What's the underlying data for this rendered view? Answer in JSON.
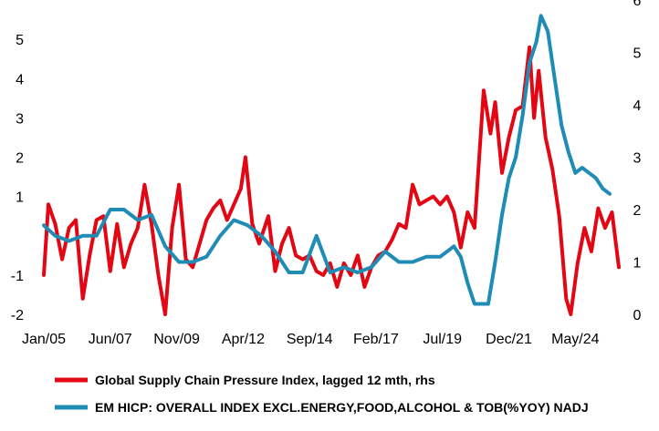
{
  "chart_data": {
    "type": "line",
    "title": "",
    "xlabel": "",
    "ylabel": "",
    "x_range": [
      "2005-01",
      "2025-12"
    ],
    "x_ticks": [
      "Jan/05",
      "Jun/07",
      "Nov/09",
      "Apr/12",
      "Sep/14",
      "Feb/17",
      "Jul/19",
      "Dec/21",
      "May/24"
    ],
    "y_left": {
      "min": -2,
      "max": 6,
      "ticks": [
        "-2",
        "-1",
        "1",
        "2",
        "3",
        "4",
        "5"
      ]
    },
    "y_right": {
      "min": 0,
      "max": 6,
      "ticks": [
        "0",
        "1",
        "2",
        "3",
        "4",
        "5",
        "6"
      ]
    },
    "grid": false,
    "legend_position": "bottom",
    "series": [
      {
        "name": "Global Supply Chain Pressure Index, lagged 12 mth, rhs",
        "color": "#e30613",
        "axis": "left",
        "points": [
          [
            "2005-01",
            -1.0
          ],
          [
            "2005-03",
            0.8
          ],
          [
            "2005-06",
            0.3
          ],
          [
            "2005-09",
            -0.6
          ],
          [
            "2005-12",
            0.2
          ],
          [
            "2006-03",
            0.4
          ],
          [
            "2006-06",
            -1.6
          ],
          [
            "2006-09",
            -0.5
          ],
          [
            "2006-12",
            0.4
          ],
          [
            "2007-03",
            0.5
          ],
          [
            "2007-06",
            -0.9
          ],
          [
            "2007-09",
            0.3
          ],
          [
            "2007-12",
            -0.8
          ],
          [
            "2008-03",
            -0.2
          ],
          [
            "2008-06",
            0.2
          ],
          [
            "2008-09",
            1.3
          ],
          [
            "2008-12",
            0.3
          ],
          [
            "2009-03",
            -1.0
          ],
          [
            "2009-06",
            -2.0
          ],
          [
            "2009-09",
            0.2
          ],
          [
            "2009-12",
            1.3
          ],
          [
            "2010-03",
            -0.6
          ],
          [
            "2010-06",
            -0.8
          ],
          [
            "2010-09",
            -0.2
          ],
          [
            "2010-12",
            0.4
          ],
          [
            "2011-03",
            0.7
          ],
          [
            "2011-06",
            0.9
          ],
          [
            "2011-09",
            0.4
          ],
          [
            "2011-12",
            0.8
          ],
          [
            "2012-03",
            1.2
          ],
          [
            "2012-05",
            2.0
          ],
          [
            "2012-08",
            0.3
          ],
          [
            "2012-11",
            -0.2
          ],
          [
            "2013-03",
            0.5
          ],
          [
            "2013-06",
            -0.9
          ],
          [
            "2013-09",
            -0.2
          ],
          [
            "2013-12",
            0.2
          ],
          [
            "2014-03",
            -0.5
          ],
          [
            "2014-06",
            -0.6
          ],
          [
            "2014-09",
            -0.5
          ],
          [
            "2014-12",
            -0.9
          ],
          [
            "2015-03",
            -1.0
          ],
          [
            "2015-06",
            -0.7
          ],
          [
            "2015-09",
            -1.3
          ],
          [
            "2015-12",
            -0.7
          ],
          [
            "2016-03",
            -1.0
          ],
          [
            "2016-06",
            -0.5
          ],
          [
            "2016-09",
            -1.3
          ],
          [
            "2016-12",
            -0.8
          ],
          [
            "2017-03",
            -0.5
          ],
          [
            "2017-06",
            -0.4
          ],
          [
            "2017-09",
            -0.1
          ],
          [
            "2017-12",
            0.3
          ],
          [
            "2018-03",
            0.2
          ],
          [
            "2018-06",
            1.3
          ],
          [
            "2018-09",
            0.8
          ],
          [
            "2018-12",
            0.9
          ],
          [
            "2019-03",
            1.0
          ],
          [
            "2019-06",
            0.8
          ],
          [
            "2019-09",
            1.0
          ],
          [
            "2019-12",
            0.6
          ],
          [
            "2020-03",
            -0.3
          ],
          [
            "2020-06",
            0.6
          ],
          [
            "2020-09",
            0.2
          ],
          [
            "2021-01",
            3.7
          ],
          [
            "2021-04",
            2.6
          ],
          [
            "2021-06",
            3.4
          ],
          [
            "2021-09",
            1.6
          ],
          [
            "2021-12",
            2.5
          ],
          [
            "2022-03",
            3.2
          ],
          [
            "2022-06",
            3.3
          ],
          [
            "2022-09",
            4.8
          ],
          [
            "2022-11",
            3.0
          ],
          [
            "2023-01",
            4.2
          ],
          [
            "2023-04",
            2.5
          ],
          [
            "2023-07",
            1.7
          ],
          [
            "2023-10",
            0.5
          ],
          [
            "2024-01",
            -1.6
          ],
          [
            "2024-03",
            -2.0
          ],
          [
            "2024-06",
            -0.7
          ],
          [
            "2024-09",
            0.2
          ],
          [
            "2024-12",
            -0.4
          ],
          [
            "2025-03",
            0.7
          ],
          [
            "2025-06",
            0.2
          ],
          [
            "2025-09",
            0.6
          ],
          [
            "2025-12",
            -0.8
          ]
        ]
      },
      {
        "name": "EM HICP: OVERALL INDEX EXCL.ENERGY,FOOD,ALCOHOL & TOB(%YOY) NADJ",
        "color": "#1f8cb5",
        "axis": "right",
        "points": [
          [
            "2005-01",
            1.7
          ],
          [
            "2005-06",
            1.5
          ],
          [
            "2005-12",
            1.4
          ],
          [
            "2006-06",
            1.5
          ],
          [
            "2006-12",
            1.5
          ],
          [
            "2007-06",
            2.0
          ],
          [
            "2007-12",
            2.0
          ],
          [
            "2008-06",
            1.8
          ],
          [
            "2008-12",
            1.9
          ],
          [
            "2009-06",
            1.3
          ],
          [
            "2009-12",
            1.0
          ],
          [
            "2010-06",
            1.0
          ],
          [
            "2010-12",
            1.1
          ],
          [
            "2011-06",
            1.5
          ],
          [
            "2011-12",
            1.8
          ],
          [
            "2012-06",
            1.7
          ],
          [
            "2012-12",
            1.5
          ],
          [
            "2013-06",
            1.2
          ],
          [
            "2013-12",
            0.8
          ],
          [
            "2014-06",
            0.8
          ],
          [
            "2014-12",
            1.5
          ],
          [
            "2015-06",
            0.8
          ],
          [
            "2015-12",
            0.9
          ],
          [
            "2016-06",
            0.8
          ],
          [
            "2016-12",
            0.9
          ],
          [
            "2017-06",
            1.2
          ],
          [
            "2017-12",
            1.0
          ],
          [
            "2018-06",
            1.0
          ],
          [
            "2018-12",
            1.1
          ],
          [
            "2019-06",
            1.1
          ],
          [
            "2019-12",
            1.3
          ],
          [
            "2020-03",
            1.1
          ],
          [
            "2020-06",
            0.6
          ],
          [
            "2020-09",
            0.2
          ],
          [
            "2020-12",
            0.2
          ],
          [
            "2021-03",
            0.2
          ],
          [
            "2021-06",
            1.0
          ],
          [
            "2021-09",
            1.9
          ],
          [
            "2021-12",
            2.6
          ],
          [
            "2022-03",
            3.0
          ],
          [
            "2022-06",
            3.8
          ],
          [
            "2022-09",
            4.8
          ],
          [
            "2022-12",
            5.2
          ],
          [
            "2023-02",
            5.7
          ],
          [
            "2023-05",
            5.4
          ],
          [
            "2023-08",
            4.5
          ],
          [
            "2023-11",
            3.6
          ],
          [
            "2024-02",
            3.1
          ],
          [
            "2024-05",
            2.7
          ],
          [
            "2024-08",
            2.8
          ],
          [
            "2024-11",
            2.7
          ],
          [
            "2025-02",
            2.6
          ],
          [
            "2025-05",
            2.4
          ],
          [
            "2025-08",
            2.3
          ]
        ]
      }
    ]
  }
}
